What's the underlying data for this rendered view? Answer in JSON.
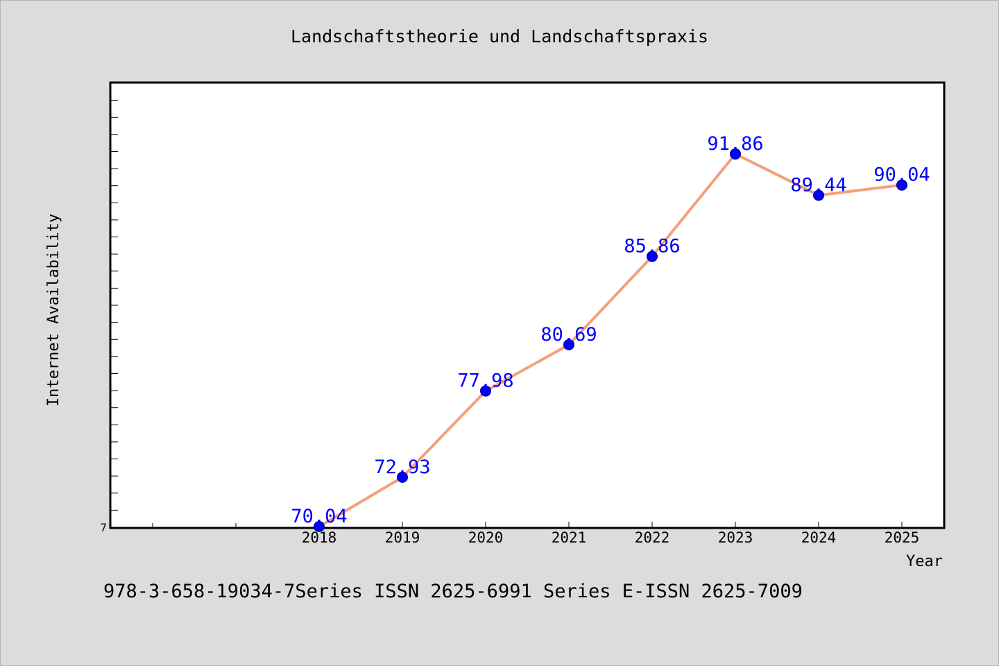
{
  "chart_data": {
    "type": "line",
    "title": "Landschaftstheorie und Landschaftspraxis",
    "xlabel": "Year",
    "ylabel": "Internet Availability",
    "x": [
      "2018",
      "2019",
      "2020",
      "2021",
      "2022",
      "2023",
      "2024",
      "2025"
    ],
    "series": [
      {
        "values": [
          70.04,
          72.93,
          77.98,
          80.69,
          85.86,
          91.86,
          89.44,
          90.04
        ],
        "data_labels": [
          "70.04",
          "72.93",
          "77.98",
          "80.69",
          "85.86",
          "91.86",
          "89.44",
          "90.04"
        ]
      }
    ],
    "ylim": [
      70,
      96
    ],
    "y_tick_label": "7",
    "grid": false,
    "legend": "none",
    "line_color": "#f4a07a",
    "marker_color": "#0000ff",
    "label_color": "#0000ff"
  },
  "footer": {
    "text": "978-3-658-19034-7Series ISSN 2625-6991 Series E-ISSN 2625-7009"
  }
}
